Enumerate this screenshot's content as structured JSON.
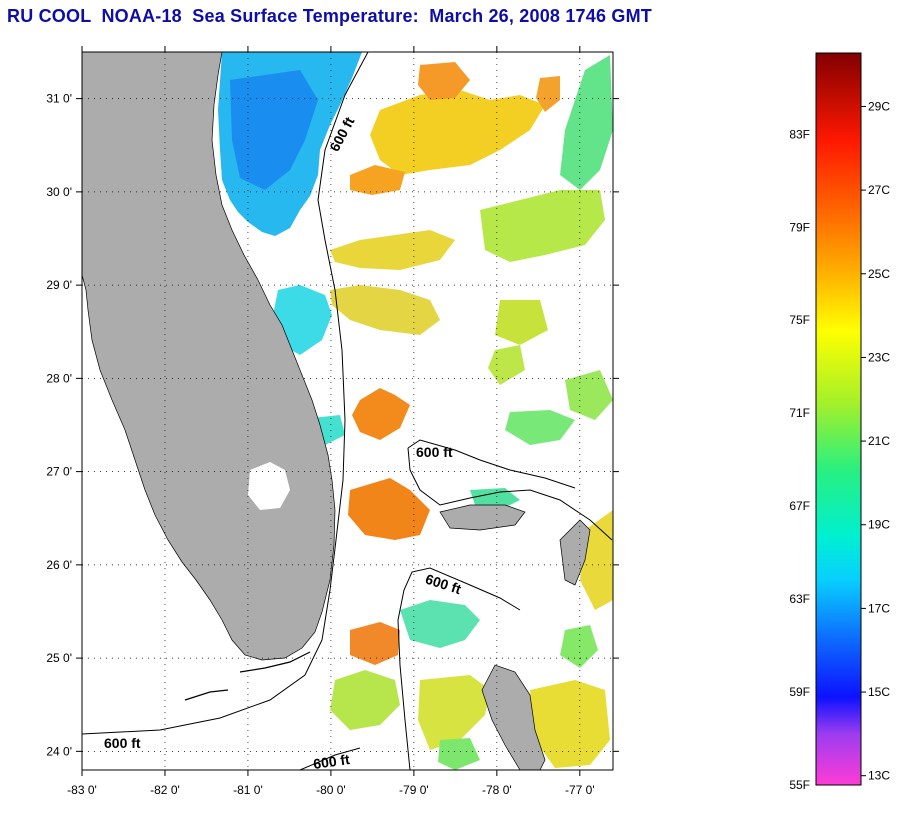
{
  "title": "RU COOL  NOAA-18  Sea Surface Temperature:  March 26, 2008 1746 GMT",
  "colors": {
    "land": "#acacac",
    "cloud": "#ffffff",
    "frame": "#000000",
    "title": "#0d0da8"
  },
  "map": {
    "lon_range": [
      -83.0,
      -76.6
    ],
    "lat_range": [
      23.8,
      31.5
    ],
    "lat_ticks": [
      {
        "value": 24,
        "label": "24 0'"
      },
      {
        "value": 25,
        "label": "25 0'"
      },
      {
        "value": 26,
        "label": "26 0'"
      },
      {
        "value": 27,
        "label": "27 0'"
      },
      {
        "value": 28,
        "label": "28 0'"
      },
      {
        "value": 29,
        "label": "29 0'"
      },
      {
        "value": 30,
        "label": "30 0'"
      },
      {
        "value": 31,
        "label": "31 0'"
      }
    ],
    "lon_ticks": [
      {
        "value": -83,
        "label": "-83 0'"
      },
      {
        "value": -82,
        "label": "-82 0'"
      },
      {
        "value": -81,
        "label": "-81 0'"
      },
      {
        "value": -80,
        "label": "-80 0'"
      },
      {
        "value": -79,
        "label": "-79 0'"
      },
      {
        "value": -78,
        "label": "-78 0'"
      },
      {
        "value": -77,
        "label": "-77 0'"
      }
    ],
    "grid": "dotted",
    "contour_labels": [
      "600 ft",
      "600 ft",
      "600 ft",
      "600 ft",
      "600 ft"
    ]
  },
  "colorbar": {
    "stops": [
      {
        "f": 0.0,
        "color": "#ff3cd6"
      },
      {
        "f": 0.07,
        "color": "#9c3cf0"
      },
      {
        "f": 0.12,
        "color": "#0c12ff"
      },
      {
        "f": 0.2,
        "color": "#0d6cff"
      },
      {
        "f": 0.28,
        "color": "#08cfff"
      },
      {
        "f": 0.34,
        "color": "#00f0d0"
      },
      {
        "f": 0.43,
        "color": "#28f080"
      },
      {
        "f": 0.52,
        "color": "#a2f02a"
      },
      {
        "f": 0.62,
        "color": "#ffff00"
      },
      {
        "f": 0.7,
        "color": "#ffb000"
      },
      {
        "f": 0.78,
        "color": "#ff6a00"
      },
      {
        "f": 0.88,
        "color": "#ff1800"
      },
      {
        "f": 1.0,
        "color": "#820000"
      }
    ],
    "fahrenheit_labels": [
      "55F",
      "59F",
      "63F",
      "67F",
      "71F",
      "75F",
      "79F",
      "83F"
    ],
    "celsius_labels": [
      "13C",
      "15C",
      "17C",
      "19C",
      "21C",
      "23C",
      "25C",
      "27C",
      "29C"
    ]
  }
}
